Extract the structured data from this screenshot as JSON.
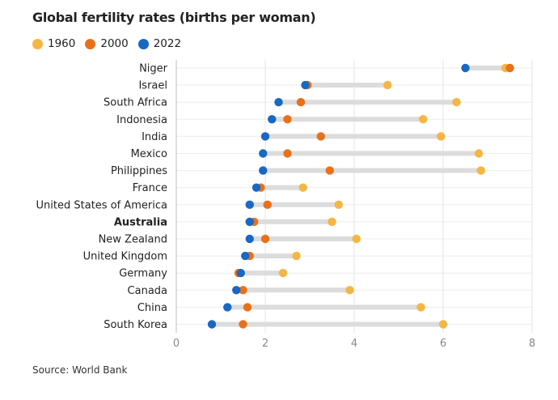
{
  "title": "Global fertility rates (births per woman)",
  "source": "Source: World Bank",
  "legend": [
    {
      "label": "1960",
      "color": "#f5b642"
    },
    {
      "label": "2000",
      "color": "#e8711a"
    },
    {
      "label": "2022",
      "color": "#1868c4"
    }
  ],
  "chart_data": {
    "type": "dumbbell",
    "title": "Global fertility rates (births per woman)",
    "xlabel": "",
    "ylabel": "",
    "xlim": [
      0,
      8
    ],
    "xticks": [
      0,
      2,
      4,
      6,
      8
    ],
    "grid": true,
    "highlight": "Australia",
    "categories": [
      "Niger",
      "Israel",
      "South Africa",
      "Indonesia",
      "India",
      "Mexico",
      "Philippines",
      "France",
      "United States of America",
      "Australia",
      "New Zealand",
      "United Kingdom",
      "Germany",
      "Canada",
      "China",
      "South Korea"
    ],
    "series": [
      {
        "name": "1960",
        "color": "#f5b642",
        "values": [
          7.4,
          4.75,
          6.3,
          5.55,
          5.95,
          6.8,
          6.85,
          2.85,
          3.65,
          3.5,
          4.05,
          2.7,
          2.4,
          3.9,
          5.5,
          6.0
        ]
      },
      {
        "name": "2000",
        "color": "#e8711a",
        "values": [
          7.5,
          2.95,
          2.8,
          2.5,
          3.25,
          2.5,
          3.45,
          1.9,
          2.05,
          1.75,
          2.0,
          1.65,
          1.4,
          1.5,
          1.6,
          1.5
        ]
      },
      {
        "name": "2022",
        "color": "#1868c4",
        "values": [
          6.5,
          2.9,
          2.3,
          2.15,
          2.0,
          1.95,
          1.95,
          1.8,
          1.65,
          1.65,
          1.65,
          1.55,
          1.45,
          1.35,
          1.15,
          0.8
        ]
      }
    ]
  }
}
